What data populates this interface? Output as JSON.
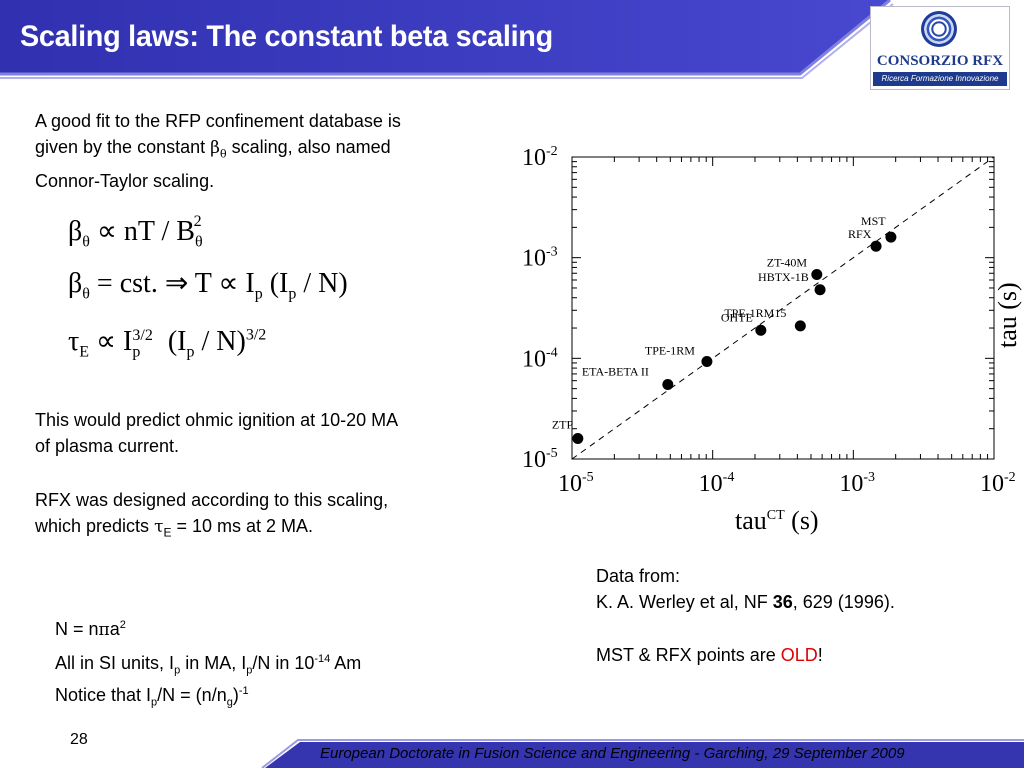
{
  "slide": {
    "title": "Scaling laws: The constant beta scaling",
    "page_number": "28",
    "footer": "European Doctorate in Fusion Science and Engineering  -  Garching, 29 September 2009"
  },
  "logo": {
    "name": "CONSORZIO RFX",
    "tagline": "Ricerca Formazione Innovazione"
  },
  "text": {
    "intro_line1": "A good fit to the RFP confinement database is",
    "intro_line2_a": "given by the constant ",
    "beta_sym": "β",
    "theta_sym": "θ",
    "intro_line2_b": " scaling, also named",
    "intro_line3": "Connor-Taylor scaling.",
    "ignition_line1": "This would predict ohmic ignition at 10-20 MA",
    "ignition_line2": "of plasma current.",
    "rfx_line1": "RFX was designed according to this scaling,",
    "rfx_line2_a": "which predicts ",
    "tau_sym": "τ",
    "E_sub": "E",
    "rfx_line2_b": " = 10 ms at 2 MA."
  },
  "formulas": {
    "f1": {
      "lhs": "β",
      "lhs_sub": "θ",
      "op": " ∝ nT / B",
      "sub": "θ",
      "sup": "2"
    },
    "f2": {
      "lhs": "β",
      "lhs_sub": "θ",
      "mid": " = cst. ⇒ T ∝ I",
      "p1": "p",
      "open": " (I",
      "p2": "p",
      "close": " / N)"
    },
    "f3": {
      "lhs": "τ",
      "lhs_sub": "E",
      "mid": " ∝ I",
      "p1": "p",
      "exp1": "3/2",
      "open": " (I",
      "p2": "p",
      "close": " / N)",
      "exp2": "3/2"
    }
  },
  "notes": {
    "n1_a": "N = n",
    "pi": "π",
    "n1_b": "a",
    "n1_sup": "2",
    "n2_a": "All in SI units, I",
    "n2_sub1": "p",
    "n2_b": " in MA, I",
    "n2_sub2": "p",
    "n2_c": "/N in 10",
    "n2_sup": "-14",
    "n2_d": " Am",
    "n3_a": "Notice that I",
    "n3_sub1": "p",
    "n3_b": "/N = (n/n",
    "n3_sub2": "g",
    "n3_c": ")",
    "n3_sup": "-1"
  },
  "reference": {
    "line1": "Data from:",
    "line2_a": "K. A. Werley et al, NF ",
    "volume": "36",
    "line2_b": ", 629 (1996).",
    "old_a": "MST & RFX points are ",
    "old_word": "OLD",
    "old_b": "!"
  },
  "colors": {
    "header_blue": "#2c2ca8",
    "header_light": "#5a5ad8",
    "footer_blue": "#3535b0",
    "old_red": "#e00000"
  },
  "chart_data": {
    "type": "scatter",
    "x_scale": "log",
    "y_scale": "log",
    "xlim": [
      1e-05,
      0.01
    ],
    "ylim": [
      1e-05,
      0.01
    ],
    "x_ticks": [
      {
        "value": 1e-05,
        "base": "10",
        "exp": "-5"
      },
      {
        "value": 0.0001,
        "base": "10",
        "exp": "-4"
      },
      {
        "value": 0.001,
        "base": "10",
        "exp": "-3"
      },
      {
        "value": 0.01,
        "base": "10",
        "exp": "-2"
      }
    ],
    "y_ticks": [
      {
        "value": 1e-05,
        "base": "10",
        "exp": "-5"
      },
      {
        "value": 0.0001,
        "base": "10",
        "exp": "-4"
      },
      {
        "value": 0.001,
        "base": "10",
        "exp": "-3"
      },
      {
        "value": 0.01,
        "base": "10",
        "exp": "-2"
      }
    ],
    "xlabel": "tau",
    "xlabel_sup": "CT",
    "xlabel_unit": " (s)",
    "ylabel": "tau (s)",
    "reference_line": {
      "style": "dashed",
      "from": [
        1e-05,
        1e-05
      ],
      "to": [
        0.01,
        0.01
      ]
    },
    "points": [
      {
        "label": "ZTP",
        "x": 1.1e-05,
        "y": 1.6e-05
      },
      {
        "label": "ETA-BETA II",
        "x": 4.8e-05,
        "y": 5.5e-05
      },
      {
        "label": "TPE-1RM",
        "x": 9.1e-05,
        "y": 9.3e-05
      },
      {
        "label": "OHTE",
        "x": 0.00022,
        "y": 0.00019
      },
      {
        "label": "TPE-1RM15",
        "x": 0.00042,
        "y": 0.00021
      },
      {
        "label": "ZT-40M",
        "x": 0.00055,
        "y": 0.00068
      },
      {
        "label": "HBTX-1B",
        "x": 0.00058,
        "y": 0.00048
      },
      {
        "label": "RFX",
        "x": 0.00145,
        "y": 0.0013
      },
      {
        "label": "MST",
        "x": 0.00185,
        "y": 0.0016
      }
    ]
  }
}
